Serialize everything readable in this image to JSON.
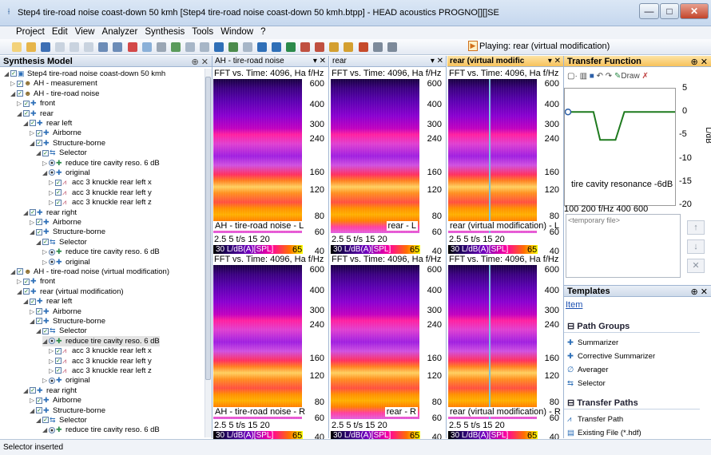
{
  "window": {
    "title": "Step4 tire-road noise coast-down 50 kmh [Step4 tire-road noise coast-down 50 kmh.btpp] - HEAD acoustics PROGNO[][]SE",
    "minimize": "—",
    "maximize": "□",
    "close": "✕"
  },
  "menu": [
    "Project",
    "Edit",
    "View",
    "Analyzer",
    "Synthesis",
    "Tools",
    "Window",
    "?"
  ],
  "toolbar": {
    "playing": "Playing: rear (virtual modification)",
    "play_badge": "▶"
  },
  "left_pane": {
    "title": "Synthesis Model",
    "pin": "⊕ ✕"
  },
  "tree": [
    {
      "d": 0,
      "label": "Step4 tire-road noise coast-down 50 kmh",
      "icon": "project-icon",
      "ex": "◢"
    },
    {
      "d": 1,
      "label": "AH - measurement",
      "icon": "head-icon",
      "ex": "▷"
    },
    {
      "d": 1,
      "label": "AH - tire-road noise",
      "icon": "head-icon",
      "ex": "◢"
    },
    {
      "d": 2,
      "label": "front",
      "icon": "plus-icon",
      "ex": "▷"
    },
    {
      "d": 2,
      "label": "rear",
      "icon": "plus-icon",
      "ex": "◢"
    },
    {
      "d": 3,
      "label": "rear left",
      "icon": "plus-icon",
      "ex": "◢"
    },
    {
      "d": 4,
      "label": "Airborne",
      "icon": "plus-icon",
      "ex": "▷"
    },
    {
      "d": 4,
      "label": "Structure-borne",
      "icon": "plus-icon",
      "ex": "◢"
    },
    {
      "d": 5,
      "label": "Selector",
      "icon": "selector-icon",
      "ex": "◢"
    },
    {
      "d": 6,
      "label": "reduce tire cavity reso. 6 dB",
      "icon": "corrective-icon",
      "ex": "▷",
      "radio": true
    },
    {
      "d": 6,
      "label": "original",
      "icon": "plus-icon",
      "ex": "◢",
      "radio": true
    },
    {
      "d": 7,
      "label": "acc 3 knuckle rear left x",
      "icon": "transfer-icon",
      "ex": "▷"
    },
    {
      "d": 7,
      "label": "acc 3 knuckle rear left y",
      "icon": "transfer-icon",
      "ex": "▷"
    },
    {
      "d": 7,
      "label": "acc 3 knuckle rear left z",
      "icon": "transfer-icon",
      "ex": "▷"
    },
    {
      "d": 3,
      "label": "rear right",
      "icon": "plus-icon",
      "ex": "◢"
    },
    {
      "d": 4,
      "label": "Airborne",
      "icon": "plus-icon",
      "ex": "▷"
    },
    {
      "d": 4,
      "label": "Structure-borne",
      "icon": "plus-icon",
      "ex": "◢"
    },
    {
      "d": 5,
      "label": "Selector",
      "icon": "selector-icon",
      "ex": "◢"
    },
    {
      "d": 6,
      "label": "reduce tire cavity reso. 6 dB",
      "icon": "corrective-icon",
      "ex": "▷",
      "radio": true
    },
    {
      "d": 6,
      "label": "original",
      "icon": "plus-icon",
      "ex": "▷",
      "radio": true
    },
    {
      "d": 1,
      "label": "AH - tire-road noise (virtual modification)",
      "icon": "head-icon",
      "ex": "◢"
    },
    {
      "d": 2,
      "label": "front",
      "icon": "plus-icon",
      "ex": "▷"
    },
    {
      "d": 2,
      "label": "rear (virtual modification)",
      "icon": "plus-icon",
      "ex": "◢"
    },
    {
      "d": 3,
      "label": "rear left",
      "icon": "plus-icon",
      "ex": "◢"
    },
    {
      "d": 4,
      "label": "Airborne",
      "icon": "plus-icon",
      "ex": "▷"
    },
    {
      "d": 4,
      "label": "Structure-borne",
      "icon": "plus-icon",
      "ex": "◢"
    },
    {
      "d": 5,
      "label": "Selector",
      "icon": "selector-icon",
      "ex": "◢"
    },
    {
      "d": 6,
      "label": "reduce tire cavity reso. 6 dB",
      "icon": "corrective-icon",
      "ex": "◢",
      "radio": true,
      "sel": true
    },
    {
      "d": 7,
      "label": "acc 3 knuckle rear left x",
      "icon": "transfer-icon",
      "ex": "▷"
    },
    {
      "d": 7,
      "label": "acc 3 knuckle rear left y",
      "icon": "transfer-icon",
      "ex": "▷"
    },
    {
      "d": 7,
      "label": "acc 3 knuckle rear left z",
      "icon": "transfer-icon",
      "ex": "▷"
    },
    {
      "d": 6,
      "label": "original",
      "icon": "plus-icon",
      "ex": "▷",
      "radio": true
    },
    {
      "d": 3,
      "label": "rear right",
      "icon": "plus-icon",
      "ex": "◢"
    },
    {
      "d": 4,
      "label": "Airborne",
      "icon": "plus-icon",
      "ex": "▷"
    },
    {
      "d": 4,
      "label": "Structure-borne",
      "icon": "plus-icon",
      "ex": "◢"
    },
    {
      "d": 5,
      "label": "Selector",
      "icon": "selector-icon",
      "ex": "◢"
    },
    {
      "d": 6,
      "label": "reduce tire cavity reso. 6 dB",
      "icon": "corrective-icon",
      "ex": "◢",
      "radio": true
    }
  ],
  "panes": [
    {
      "tab": "AH - tire-road noise",
      "active": false,
      "top_label": "AH - tire-road noise - L",
      "bottom_label": "AH - tire-road noise - R"
    },
    {
      "tab": "rear",
      "active": false,
      "top_label": "rear - L",
      "bottom_label": "rear - R"
    },
    {
      "tab": "rear (virtual modific",
      "active": true,
      "top_label": "rear (virtual modification) - L",
      "bottom_label": "rear (virtual modification) - R"
    }
  ],
  "spectrogram": {
    "title": "FFT vs. Time: 4096, Ha f/Hz",
    "yticks": [
      "600",
      "400",
      "300",
      "240",
      "160",
      "120",
      "80",
      "60",
      "40"
    ],
    "xticks": "2.5 5    t/s    15  20",
    "cbar": "30 L/dB(A)[SPL]",
    "cbar_max": "65",
    "tab_controls": "▾  ✕"
  },
  "transfer": {
    "title": "Transfer Function",
    "draw": "Draw",
    "yticks": [
      "5",
      "0",
      "-5",
      "-10",
      "-15",
      "-20"
    ],
    "ylabel": "L/dB",
    "xticks": "100  200   f/Hz 400      600",
    "curve_label": "tire cavity resonance -6dB",
    "file_placeholder": "<temporary file>",
    "pin": "⊕ ✕",
    "buttons": [
      "↑",
      "↓",
      "✕"
    ]
  },
  "transfer_curve": {
    "f": [
      100,
      200,
      230,
      260,
      330,
      370,
      600
    ],
    "db": [
      0,
      0,
      0,
      -6,
      -6,
      0,
      0
    ],
    "xlim": [
      100,
      600
    ],
    "ylim": [
      -20,
      5
    ]
  },
  "templates": {
    "title": "Templates",
    "tab": "Item",
    "pin": "⊕ ✕",
    "sections": [
      {
        "label": "Path Groups",
        "items": [
          {
            "icon": "✚",
            "label": "Summarizer"
          },
          {
            "icon": "✚",
            "label": "Corrective Summarizer"
          },
          {
            "icon": "∅",
            "label": "Averager"
          },
          {
            "icon": "⇆",
            "label": "Selector"
          }
        ]
      },
      {
        "label": "Transfer Paths",
        "items": [
          {
            "icon": "⩘",
            "label": "Transfer Path"
          },
          {
            "icon": "▤",
            "label": "Existing File (*.hdf)"
          }
        ]
      }
    ]
  },
  "status": "Selector inserted",
  "colors": {
    "accent": "#f7c25b",
    "tree_check": "#1a7a1a",
    "tf_curve": "#1e7a1e"
  }
}
